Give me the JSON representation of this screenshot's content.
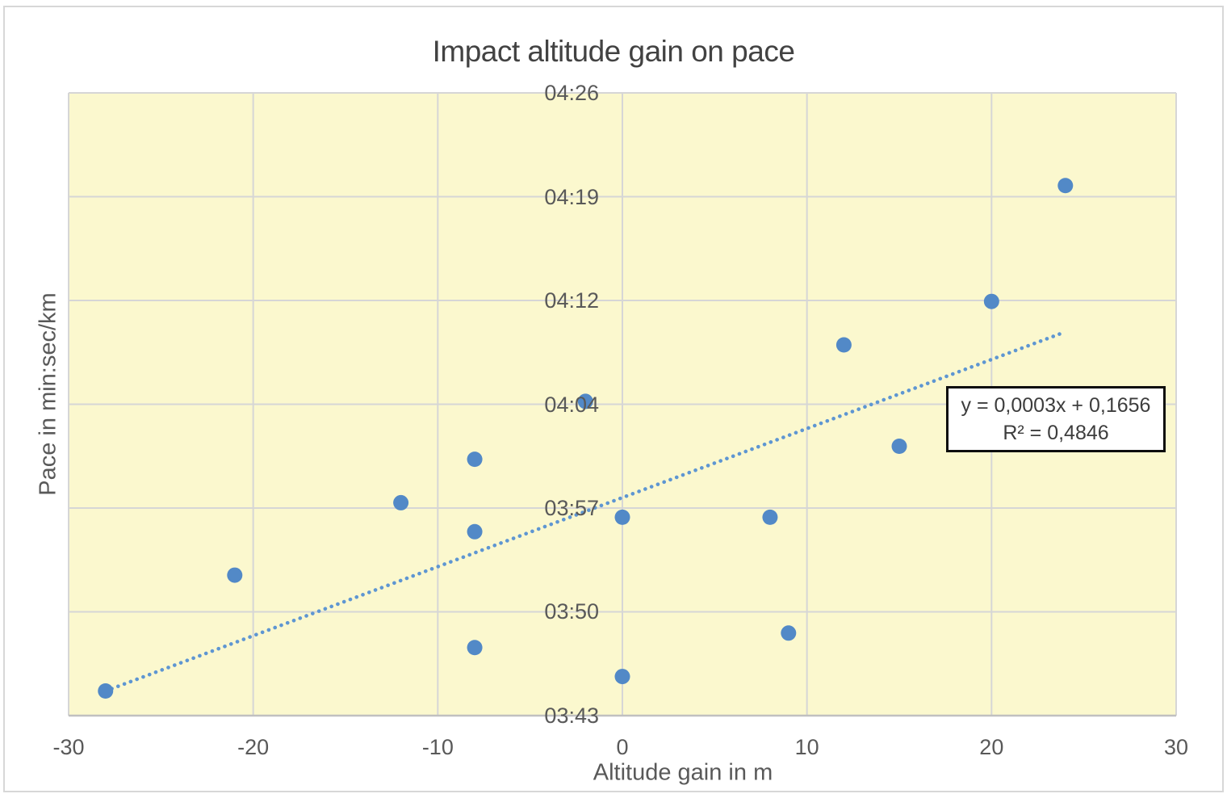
{
  "chart_data": {
    "type": "scatter",
    "title": "Impact altitude gain on pace",
    "xlabel": "Altitude gain in m",
    "ylabel": "Pace in min:sec/km",
    "xlim": [
      -30,
      30
    ],
    "ylim_seconds": [
      223,
      266
    ],
    "grid": true,
    "legend": "none",
    "x_ticks": [
      {
        "value": -30,
        "label": "-30"
      },
      {
        "value": -20,
        "label": "-20"
      },
      {
        "value": -10,
        "label": "-10"
      },
      {
        "value": 0,
        "label": "0"
      },
      {
        "value": 10,
        "label": "10"
      },
      {
        "value": 20,
        "label": "20"
      },
      {
        "value": 30,
        "label": "30"
      }
    ],
    "y_ticks": [
      {
        "seconds": 223,
        "label": "03:43"
      },
      {
        "seconds": 230.167,
        "label": "03:50"
      },
      {
        "seconds": 237.333,
        "label": "03:57"
      },
      {
        "seconds": 244.5,
        "label": "04:04"
      },
      {
        "seconds": 251.667,
        "label": "04:12"
      },
      {
        "seconds": 258.833,
        "label": "04:19"
      },
      {
        "seconds": 266,
        "label": "04:26"
      }
    ],
    "points": [
      {
        "x": -28,
        "pace": "03:45",
        "seconds": 224.7
      },
      {
        "x": -21,
        "pace": "03:53",
        "seconds": 232.7
      },
      {
        "x": -12,
        "pace": "03:58",
        "seconds": 237.7
      },
      {
        "x": -8,
        "pace": "04:01",
        "seconds": 240.7
      },
      {
        "x": -8,
        "pace": "03:56",
        "seconds": 235.7
      },
      {
        "x": -8,
        "pace": "03:48",
        "seconds": 227.7
      },
      {
        "x": -2,
        "pace": "04:05",
        "seconds": 244.7
      },
      {
        "x": 0,
        "pace": "03:57",
        "seconds": 236.7
      },
      {
        "x": 0,
        "pace": "03:46",
        "seconds": 225.7
      },
      {
        "x": 8,
        "pace": "03:57",
        "seconds": 236.7
      },
      {
        "x": 9,
        "pace": "03:49",
        "seconds": 228.7
      },
      {
        "x": 12,
        "pace": "04:09",
        "seconds": 248.6
      },
      {
        "x": 15,
        "pace": "04:02",
        "seconds": 241.6
      },
      {
        "x": 20,
        "pace": "04:12",
        "seconds": 251.6
      },
      {
        "x": 24,
        "pace": "04:20",
        "seconds": 259.6
      }
    ],
    "trendline": {
      "style": "dotted",
      "x_start": -28,
      "seconds_start": 224.7,
      "x_end": 24,
      "seconds_end": 249.5
    },
    "equation": {
      "line1": "y = 0,0003x + 0,1656",
      "line2": "R² = 0,4846"
    },
    "colors": {
      "marker": "#5289C7",
      "trendline": "#5E96D2",
      "plot_bg": "#FBF8CE",
      "gridline": "#D6D6D6",
      "axis_line": "#C0C0C0",
      "tick_text": "#595959",
      "title_text": "#424242",
      "equation_text": "#3D3D3D",
      "equation_border": "#0D0D0D",
      "equation_bg": "#FFFFFF"
    }
  }
}
